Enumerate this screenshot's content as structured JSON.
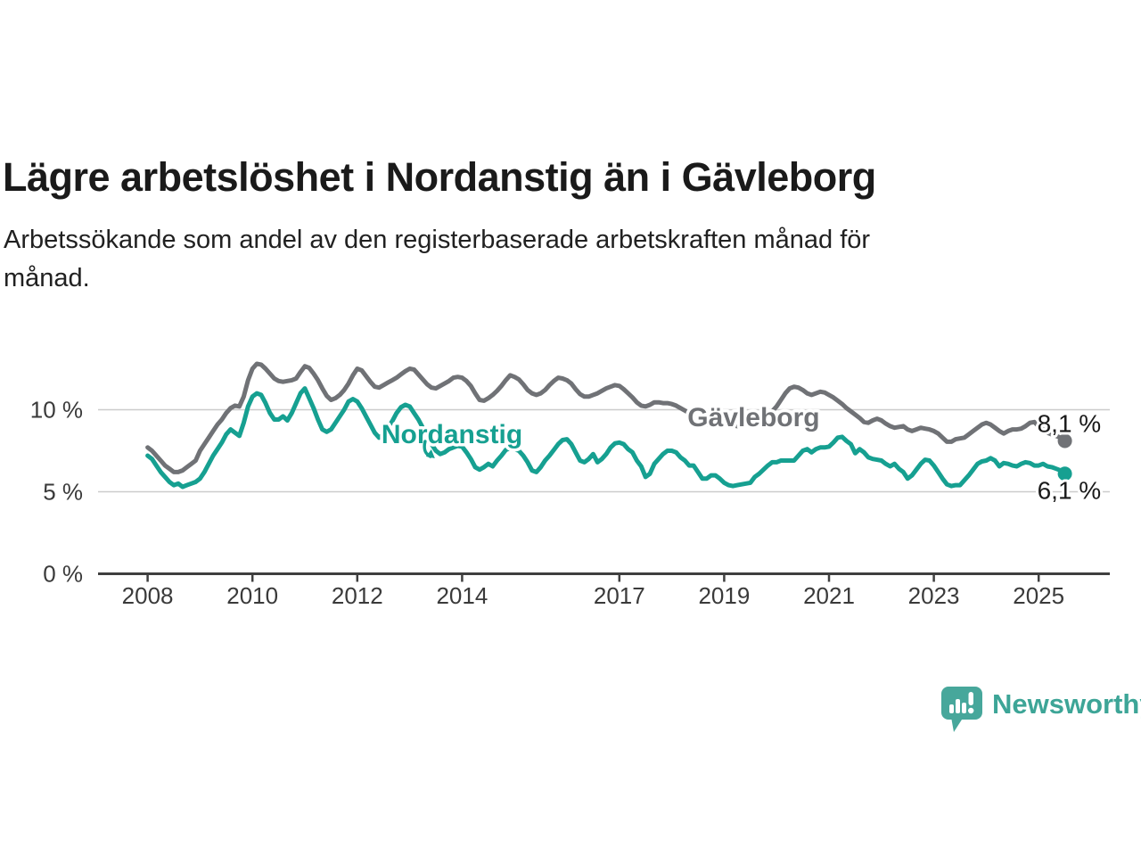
{
  "header": {
    "title": "Lägre arbetslöshet i Nordanstig än i Gävleborg",
    "subtitle_lines": [
      "Arbetssökande som andel av den registerbaserade arbetskraften månad för",
      "månad."
    ]
  },
  "footer": {
    "brand": "Newsworthy",
    "brand_color": "#3da597",
    "logo_icon": "newsworthy-speech-bubble-bar-chart-icon"
  },
  "chart_data": {
    "type": "line",
    "title": "Arbetssökande som andel av den registerbaserade arbetskraften månad för månad",
    "x_start": "2008-01",
    "x_end": "2025-07",
    "x_step_months": 1,
    "x_axis_ticks": [
      2008,
      2010,
      2012,
      2014,
      2017,
      2019,
      2021,
      2023,
      2025
    ],
    "y_axis": {
      "ticks": [
        {
          "value": 0,
          "label": "0 %"
        },
        {
          "value": 5,
          "label": "5 %"
        },
        {
          "value": 10,
          "label": "10 %"
        }
      ],
      "unit": "%",
      "range": [
        0,
        14
      ]
    },
    "grid": true,
    "style": {
      "grid_color": "#cccccc",
      "axis_color": "#3f3f3f",
      "background": "#ffffff"
    },
    "series": [
      {
        "name": "Gävleborg",
        "color": "#707276",
        "end_label": "8,1 %",
        "end_value": 8.1,
        "end_label_dy": -10,
        "label": {
          "x_year": 2018.3,
          "value": 9.6
        },
        "values": [
          7.7,
          7.5,
          7.2,
          6.9,
          6.6,
          6.4,
          6.2,
          6.2,
          6.3,
          6.5,
          6.7,
          6.9,
          7.5,
          7.9,
          8.3,
          8.7,
          9.1,
          9.4,
          9.8,
          10.1,
          10.25,
          10.2,
          10.8,
          11.8,
          12.5,
          12.8,
          12.75,
          12.5,
          12.2,
          11.9,
          11.75,
          11.7,
          11.75,
          11.8,
          11.9,
          12.3,
          12.65,
          12.55,
          12.2,
          11.8,
          11.3,
          10.85,
          10.6,
          10.7,
          10.9,
          11.2,
          11.6,
          12.1,
          12.5,
          12.4,
          12.05,
          11.7,
          11.4,
          11.35,
          11.5,
          11.65,
          11.8,
          11.95,
          12.15,
          12.35,
          12.5,
          12.45,
          12.15,
          11.85,
          11.55,
          11.35,
          11.3,
          11.45,
          11.6,
          11.75,
          11.95,
          12.0,
          11.95,
          11.75,
          11.45,
          11.0,
          10.6,
          10.55,
          10.7,
          10.9,
          11.15,
          11.45,
          11.8,
          12.1,
          12.0,
          11.85,
          11.55,
          11.2,
          11.0,
          10.9,
          11.0,
          11.2,
          11.5,
          11.75,
          11.95,
          11.9,
          11.8,
          11.6,
          11.25,
          10.95,
          10.8,
          10.8,
          10.9,
          11.0,
          11.15,
          11.3,
          11.4,
          11.5,
          11.45,
          11.25,
          11.0,
          10.75,
          10.45,
          10.25,
          10.2,
          10.3,
          10.45,
          10.45,
          10.4,
          10.4,
          10.35,
          10.25,
          10.1,
          9.95,
          9.8,
          9.6,
          9.4,
          9.25,
          9.1,
          9.05,
          9.0,
          9.05,
          9.1,
          9.1,
          9.05,
          9.0,
          9.05,
          9.1,
          9.2,
          9.3,
          9.4,
          9.55,
          9.7,
          9.9,
          10.2,
          10.6,
          11.0,
          11.3,
          11.4,
          11.35,
          11.2,
          11.0,
          10.9,
          11.0,
          11.1,
          11.05,
          10.9,
          10.75,
          10.55,
          10.35,
          10.1,
          9.9,
          9.7,
          9.5,
          9.25,
          9.2,
          9.35,
          9.45,
          9.35,
          9.15,
          9.0,
          8.9,
          8.95,
          9.0,
          8.8,
          8.7,
          8.8,
          8.9,
          8.85,
          8.8,
          8.7,
          8.55,
          8.3,
          8.05,
          8.05,
          8.2,
          8.25,
          8.3,
          8.5,
          8.7,
          8.9,
          9.1,
          9.2,
          9.1,
          8.9,
          8.7,
          8.55,
          8.7,
          8.8,
          8.8,
          8.85,
          9.0,
          9.2,
          9.25,
          9.0,
          8.8,
          8.6,
          8.5,
          8.4,
          8.3,
          8.1
        ]
      },
      {
        "name": "Nordanstig",
        "color": "#16a091",
        "end_label": "6,1 %",
        "end_value": 6.1,
        "end_label_dy": 28,
        "label": {
          "x_year": 2012.46,
          "value": 8.55
        },
        "arrow": true,
        "values": [
          7.2,
          7.0,
          6.6,
          6.2,
          5.9,
          5.6,
          5.4,
          5.5,
          5.3,
          5.4,
          5.5,
          5.6,
          5.8,
          6.2,
          6.7,
          7.2,
          7.6,
          8.0,
          8.5,
          8.8,
          8.6,
          8.4,
          9.2,
          10.2,
          10.8,
          11.0,
          10.9,
          10.4,
          9.8,
          9.4,
          9.4,
          9.6,
          9.35,
          9.8,
          10.4,
          11.0,
          11.3,
          10.7,
          10.1,
          9.4,
          8.8,
          8.65,
          8.8,
          9.2,
          9.6,
          10.0,
          10.5,
          10.65,
          10.5,
          10.1,
          9.6,
          9.1,
          8.6,
          8.3,
          8.5,
          8.9,
          9.3,
          9.8,
          10.15,
          10.3,
          10.2,
          9.8,
          9.4,
          8.9,
          8.4,
          7.9,
          7.5,
          7.3,
          7.4,
          7.6,
          7.7,
          7.8,
          7.75,
          7.4,
          7.0,
          6.5,
          6.35,
          6.5,
          6.7,
          6.55,
          6.9,
          7.2,
          7.55,
          7.65,
          7.6,
          7.5,
          7.2,
          6.8,
          6.3,
          6.2,
          6.5,
          6.9,
          7.2,
          7.55,
          7.9,
          8.15,
          8.2,
          7.9,
          7.4,
          6.9,
          6.8,
          7.0,
          7.3,
          6.8,
          7.0,
          7.3,
          7.7,
          7.95,
          8.0,
          7.9,
          7.6,
          7.4,
          6.9,
          6.55,
          5.9,
          6.1,
          6.7,
          7.0,
          7.3,
          7.5,
          7.5,
          7.4,
          7.1,
          6.9,
          6.6,
          6.6,
          6.2,
          5.8,
          5.8,
          6.0,
          6.0,
          5.8,
          5.55,
          5.4,
          5.35,
          5.4,
          5.45,
          5.5,
          5.55,
          5.9,
          6.1,
          6.35,
          6.6,
          6.8,
          6.8,
          6.9,
          6.9,
          6.9,
          6.9,
          7.2,
          7.5,
          7.6,
          7.4,
          7.6,
          7.7,
          7.7,
          7.75,
          8.0,
          8.3,
          8.35,
          8.1,
          7.9,
          7.35,
          7.6,
          7.4,
          7.1,
          7.0,
          6.95,
          6.9,
          6.7,
          6.55,
          6.7,
          6.4,
          6.2,
          5.8,
          6.0,
          6.35,
          6.7,
          6.95,
          6.9,
          6.6,
          6.2,
          5.8,
          5.45,
          5.35,
          5.4,
          5.4,
          5.7,
          6.0,
          6.35,
          6.7,
          6.85,
          6.9,
          7.05,
          6.9,
          6.55,
          6.75,
          6.7,
          6.6,
          6.55,
          6.7,
          6.8,
          6.75,
          6.6,
          6.6,
          6.7,
          6.55,
          6.5,
          6.4,
          6.3,
          6.1
        ]
      }
    ]
  }
}
